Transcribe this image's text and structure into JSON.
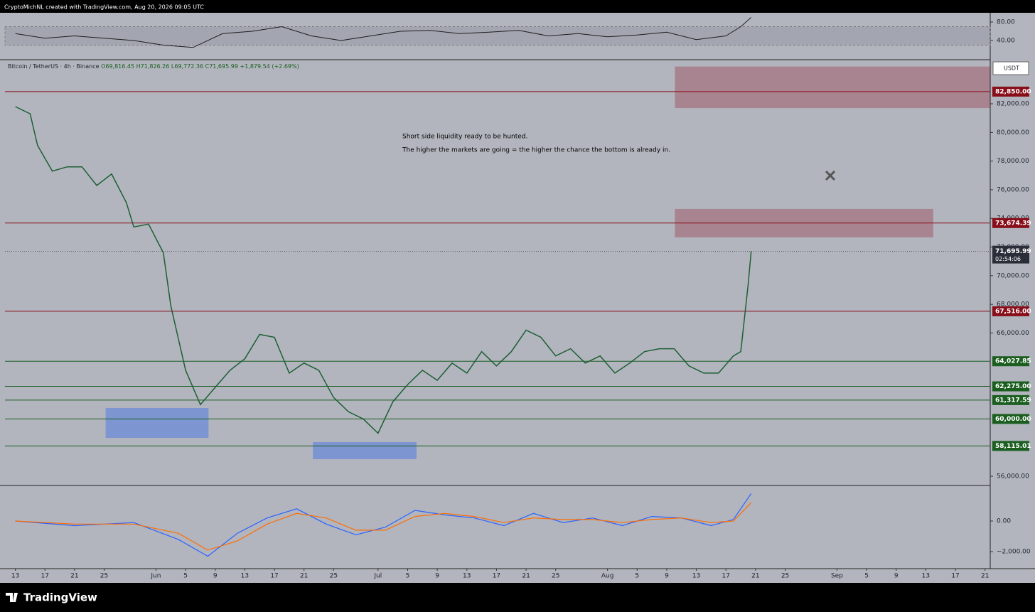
{
  "header": {
    "text": "CryptoMichNL created with TradingView.com, Aug 20, 2026 09:05 UTC"
  },
  "chart_data": [
    {
      "type": "line",
      "name": "rsi",
      "color": "#1e1e1e",
      "x": [
        0,
        4,
        8,
        12,
        16,
        20,
        24,
        28,
        32,
        36,
        40,
        44,
        48,
        52,
        56,
        60,
        64,
        68,
        72,
        76,
        80,
        84,
        88,
        92,
        96,
        98,
        99.4
      ],
      "values": [
        55,
        45,
        50,
        45,
        40,
        30,
        25,
        55,
        60,
        70,
        50,
        40,
        50,
        60,
        62,
        55,
        58,
        62,
        50,
        55,
        48,
        52,
        58,
        42,
        50,
        70,
        90
      ],
      "xlim": [
        -1.4,
        131.7
      ],
      "ylim": [
        -1.5,
        100
      ],
      "band": [
        30,
        70
      ],
      "yticks": [
        {
          "value": 80,
          "label": "80.00"
        },
        {
          "value": 40,
          "label": "40.00"
        }
      ]
    },
    {
      "type": "line",
      "name": "price",
      "legend": {
        "o": "O69,816.45",
        "h": "H71,826.26",
        "l": "L69,772.36",
        "c": "C71,695.99",
        "change": "+1,879.54 (+2.69%)"
      },
      "currency": "USDT",
      "series": [
        {
          "name": "Bitcoin / TetherUS · 4h · Binance",
          "color": "#1c5f33",
          "x": [
            0,
            2,
            3,
            5,
            7,
            9,
            11,
            13,
            15,
            16,
            18,
            20,
            21,
            23,
            25,
            27,
            29,
            31,
            33,
            35,
            37,
            39,
            41,
            43,
            45,
            47,
            49,
            51,
            53,
            55,
            57,
            59,
            61,
            63,
            65,
            67,
            69,
            71,
            73,
            75,
            77,
            79,
            81,
            83,
            85,
            87,
            89,
            91,
            93,
            95,
            97,
            98,
            99,
            99.4
          ],
          "values": [
            81800,
            81300,
            79100,
            77300,
            77600,
            77600,
            76300,
            77100,
            75100,
            73400,
            73600,
            71600,
            67900,
            63400,
            61000,
            62200,
            63400,
            64200,
            65900,
            65700,
            63200,
            63900,
            63400,
            61500,
            60500,
            60000,
            59000,
            61200,
            62400,
            63400,
            62700,
            63900,
            63200,
            64700,
            63700,
            64700,
            66200,
            65700,
            64400,
            64900,
            63900,
            64400,
            63200,
            63900,
            64700,
            64900,
            64900,
            63700,
            63200,
            63200,
            64400,
            64700,
            69400,
            71695.99
          ]
        }
      ],
      "xlim": [
        -1.4,
        131.7
      ],
      "ylim": [
        55355,
        85077
      ],
      "yticks": [
        {
          "value": 82000,
          "label": "82,000.00"
        },
        {
          "value": 80000,
          "label": "80,000.00"
        },
        {
          "value": 78000,
          "label": "78,000.00"
        },
        {
          "value": 76000,
          "label": "76,000.00"
        },
        {
          "value": 74000,
          "label": "74,000.00"
        },
        {
          "value": 72000,
          "label": "72,000.00"
        },
        {
          "value": 70000,
          "label": "70,000.00"
        },
        {
          "value": 68000,
          "label": "68,000.00"
        },
        {
          "value": 66000,
          "label": "66,000.00"
        },
        {
          "value": 56000,
          "label": "56,000.00"
        }
      ],
      "xticks": [
        {
          "value": 0,
          "label": "13"
        },
        {
          "value": 4,
          "label": "17"
        },
        {
          "value": 8,
          "label": "21"
        },
        {
          "value": 12,
          "label": "25"
        },
        {
          "value": 19,
          "label": "Jun"
        },
        {
          "value": 23,
          "label": "5"
        },
        {
          "value": 27,
          "label": "9"
        },
        {
          "value": 31,
          "label": "13"
        },
        {
          "value": 35,
          "label": "17"
        },
        {
          "value": 39,
          "label": "21"
        },
        {
          "value": 43,
          "label": "25"
        },
        {
          "value": 49,
          "label": "Jul"
        },
        {
          "value": 53,
          "label": "5"
        },
        {
          "value": 57,
          "label": "9"
        },
        {
          "value": 61,
          "label": "13"
        },
        {
          "value": 65,
          "label": "17"
        },
        {
          "value": 69,
          "label": "21"
        },
        {
          "value": 73,
          "label": "25"
        },
        {
          "value": 80,
          "label": "Aug"
        },
        {
          "value": 84,
          "label": "5"
        },
        {
          "value": 88,
          "label": "9"
        },
        {
          "value": 92,
          "label": "13"
        },
        {
          "value": 96,
          "label": "17"
        },
        {
          "value": 100,
          "label": "21"
        },
        {
          "value": 104,
          "label": "25"
        },
        {
          "value": 111,
          "label": "Sep"
        },
        {
          "value": 115,
          "label": "5"
        },
        {
          "value": 119,
          "label": "9"
        },
        {
          "value": 123,
          "label": "13"
        },
        {
          "value": 127,
          "label": "17"
        },
        {
          "value": 131,
          "label": "21"
        }
      ],
      "levels": [
        {
          "value": 82850,
          "label": "82,850.00",
          "color": "#880e1a"
        },
        {
          "value": 73674.39,
          "label": "73,674.39",
          "color": "#880e1a"
        },
        {
          "value": 67516,
          "label": "67,516.00",
          "color": "#880e1a"
        },
        {
          "value": 64027.85,
          "label": "64,027.85",
          "color": "#1b5e20"
        },
        {
          "value": 62275,
          "label": "62,275.00",
          "color": "#1b5e20"
        },
        {
          "value": 61317.59,
          "label": "61,317.59",
          "color": "#1b5e20"
        },
        {
          "value": 60000,
          "label": "60,000.00",
          "color": "#1b5e20"
        },
        {
          "value": 58115.01,
          "label": "58,115.01",
          "color": "#1b5e20"
        }
      ],
      "last": {
        "value": 71695.99,
        "label": "71,695.99",
        "countdown": "02:54:06"
      },
      "zones": [
        {
          "x": [
            89.1,
            131.7
          ],
          "y": [
            81700,
            84600
          ],
          "color": "rgba(150,40,60,0.35)"
        },
        {
          "x": [
            89.1,
            124.0
          ],
          "y": [
            72670,
            74660
          ],
          "color": "rgba(150,40,60,0.35)"
        },
        {
          "x": [
            12.2,
            26.1
          ],
          "y": [
            58680,
            60760
          ],
          "color": "rgba(60,110,230,0.45)"
        },
        {
          "x": [
            40.2,
            54.2
          ],
          "y": [
            57190,
            58380
          ],
          "color": "rgba(60,110,230,0.45)"
        }
      ],
      "annotations": [
        "Short side liquidity ready to be hunted.",
        "The higher the markets are going = the higher the chance the bottom is already in."
      ]
    },
    {
      "type": "line",
      "name": "macd",
      "series": [
        {
          "name": "MACD",
          "color": "#2962ff",
          "x": [
            0,
            8,
            16,
            22,
            26,
            30,
            34,
            38,
            42,
            46,
            50,
            54,
            58,
            62,
            66,
            70,
            74,
            78,
            82,
            86,
            90,
            94,
            97,
            99.4
          ],
          "values": [
            0,
            -300,
            -100,
            -1200,
            -2300,
            -800,
            200,
            800,
            -200,
            -900,
            -400,
            700,
            400,
            200,
            -300,
            500,
            -100,
            200,
            -300,
            300,
            200,
            -300,
            100,
            1800
          ]
        },
        {
          "name": "Signal",
          "color": "#ff6d00",
          "x": [
            0,
            8,
            16,
            22,
            26,
            30,
            34,
            38,
            42,
            46,
            50,
            54,
            58,
            62,
            66,
            70,
            74,
            78,
            82,
            86,
            90,
            94,
            97,
            99.4
          ],
          "values": [
            0,
            -200,
            -200,
            -800,
            -1900,
            -1300,
            -200,
            500,
            200,
            -600,
            -600,
            300,
            500,
            300,
            -100,
            200,
            100,
            100,
            -100,
            100,
            200,
            -100,
            0,
            1200
          ]
        }
      ],
      "xlim": [
        -1.4,
        131.7
      ],
      "ylim": [
        -3116,
        2326
      ],
      "yticks": [
        {
          "value": 0,
          "label": "0.00"
        },
        {
          "value": -2000,
          "label": "−2,000.00"
        }
      ]
    }
  ],
  "footer": {
    "brand": "TradingView"
  }
}
